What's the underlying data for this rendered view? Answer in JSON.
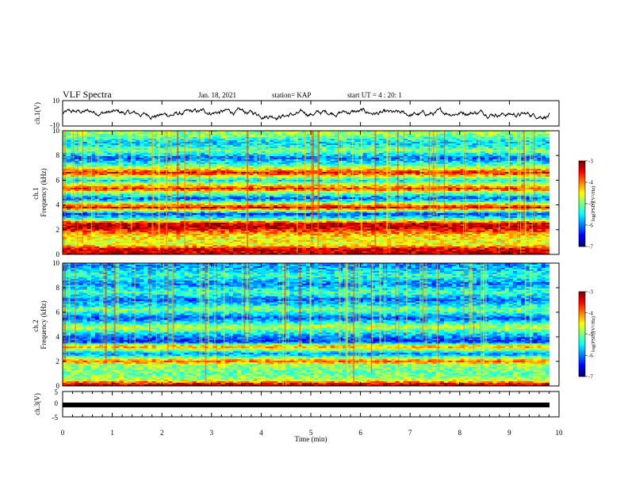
{
  "header": {
    "title": "VLF Spectra",
    "date": "Jan. 18, 2021",
    "station": "station= KAP",
    "start": "start  UT =   4 : 20: 1"
  },
  "chart_data": [
    {
      "type": "line",
      "panel": "ch1-waveform",
      "ylabel": "ch.1(V)",
      "ylim": [
        -10,
        10
      ],
      "yticks": [
        "10",
        "-10"
      ],
      "xlim": [
        0,
        10
      ],
      "approx_range": [
        -5,
        5
      ],
      "color": "#000000"
    },
    {
      "type": "heatmap",
      "panel": "ch1-spectrogram",
      "ylabel_lines": [
        "ch.1",
        "Frequency (kHz)"
      ],
      "ylim": [
        0,
        10
      ],
      "yticks": [
        "0",
        "2",
        "4",
        "6",
        "8",
        "10"
      ],
      "xlim": [
        0,
        10
      ],
      "colorbar": {
        "range": [
          -7,
          -3
        ],
        "ticks": [
          "-3",
          "-4",
          "-5",
          "-6",
          "-7"
        ],
        "label": "log(PSD)(V²/Hz)"
      },
      "frequency_profile_khz": [
        {
          "f": 0.4,
          "level": -3.3
        },
        {
          "f": 0.8,
          "level": -4.6
        },
        {
          "f": 1.5,
          "level": -4.4
        },
        {
          "f": 2.2,
          "level": -3.2
        },
        {
          "f": 2.5,
          "level": -3.4
        },
        {
          "f": 2.9,
          "level": -5.4
        },
        {
          "f": 3.3,
          "level": -6.3
        },
        {
          "f": 3.6,
          "level": -4.4
        },
        {
          "f": 3.8,
          "level": -3.3
        },
        {
          "f": 4.5,
          "level": -6.2
        },
        {
          "f": 5.0,
          "level": -4.9
        },
        {
          "f": 5.3,
          "level": -3.6
        },
        {
          "f": 6.0,
          "level": -5.6
        },
        {
          "f": 6.6,
          "level": -3.5
        },
        {
          "f": 7.2,
          "level": -5.2
        },
        {
          "f": 7.8,
          "level": -6.1
        },
        {
          "f": 8.4,
          "level": -5.0
        },
        {
          "f": 9.0,
          "level": -5.7
        },
        {
          "f": 9.7,
          "level": -4.9
        }
      ]
    },
    {
      "type": "heatmap",
      "panel": "ch2-spectrogram",
      "ylabel_lines": [
        "ch.2",
        "Frequency (kHz)"
      ],
      "ylim": [
        0,
        10
      ],
      "yticks": [
        "0",
        "2",
        "4",
        "6",
        "8",
        "10"
      ],
      "xlim": [
        0,
        10
      ],
      "colorbar": {
        "range": [
          -7,
          -3
        ],
        "ticks": [
          "-3",
          "-4",
          "-5",
          "-6",
          "-7"
        ],
        "label": "log(PSD)(V²/Hz)"
      },
      "frequency_profile_khz": [
        {
          "f": 0.1,
          "level": -3.2
        },
        {
          "f": 0.5,
          "level": -4.8
        },
        {
          "f": 1.0,
          "level": -5.1
        },
        {
          "f": 1.7,
          "level": -4.9
        },
        {
          "f": 2.0,
          "level": -3.9
        },
        {
          "f": 2.6,
          "level": -6.0
        },
        {
          "f": 3.2,
          "level": -4.0
        },
        {
          "f": 3.6,
          "level": -6.4
        },
        {
          "f": 4.2,
          "level": -5.7
        },
        {
          "f": 4.8,
          "level": -4.7
        },
        {
          "f": 5.5,
          "level": -6.2
        },
        {
          "f": 6.2,
          "level": -5.0
        },
        {
          "f": 7.0,
          "level": -6.1
        },
        {
          "f": 7.6,
          "level": -5.2
        },
        {
          "f": 8.3,
          "level": -6.0
        },
        {
          "f": 9.0,
          "level": -5.3
        },
        {
          "f": 9.7,
          "level": -5.9
        }
      ]
    },
    {
      "type": "line",
      "panel": "ch3-waveform",
      "ylabel": "ch.3(V)",
      "ylim": [
        -5,
        5
      ],
      "yticks": [
        "5",
        "0",
        "-5"
      ],
      "xlim": [
        0,
        10
      ],
      "values_constant": -0.3,
      "xlabel": "Time  (min)",
      "xticks": [
        "0",
        "1",
        "2",
        "3",
        "4",
        "5",
        "6",
        "7",
        "8",
        "9",
        "10"
      ]
    }
  ]
}
